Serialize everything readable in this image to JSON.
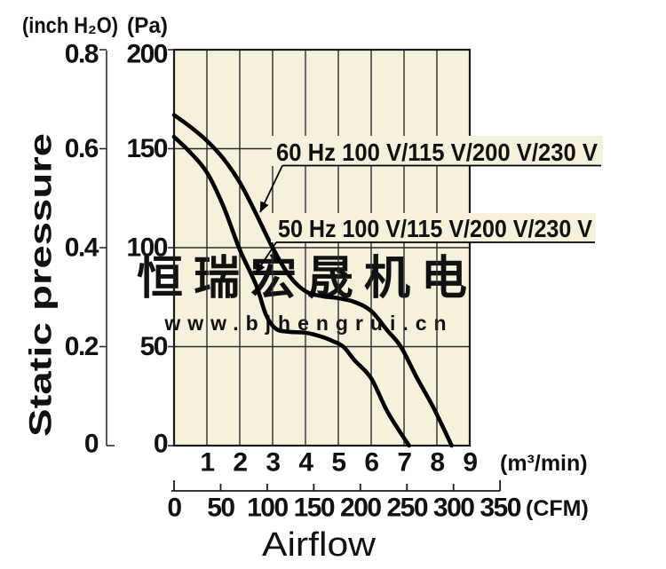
{
  "header": {
    "left_unit": "(inch H₂O)",
    "right_unit": "(Pa)"
  },
  "y_axis": {
    "title": "Static pressure",
    "inch_labels": [
      "0.8",
      "0.6",
      "0.4",
      "0.2",
      "0"
    ],
    "pa_labels": [
      "200",
      "150",
      "100",
      "50",
      "0"
    ]
  },
  "x_axis": {
    "m3min_labels": [
      "1",
      "2",
      "3",
      "4",
      "5",
      "6",
      "7",
      "8",
      "9"
    ],
    "m3min_unit": "(m³/min)",
    "cfm_labels": [
      "0",
      "50",
      "100",
      "150",
      "200",
      "250",
      "300",
      "350"
    ],
    "cfm_unit": "(CFM)",
    "title": "Airflow"
  },
  "curve_labels": {
    "hz60": "60 Hz 100 V/115 V/200 V/230 V",
    "hz50": "50 Hz 100 V/115 V/200 V/230 V"
  },
  "watermark": {
    "text": "恒瑞宏晟机电",
    "url": "www.bjhengrui.cn"
  },
  "colors": {
    "plot_bg": "#f6f1dc",
    "grid": "#2b2b2b",
    "frame": "#1a1a1a",
    "curve": "#000000",
    "text": "#111111",
    "watermark": "#dcd9ca",
    "watermark_url": "#c9c6b8"
  },
  "chart_data": {
    "type": "line",
    "title": "Fan performance: static pressure vs airflow",
    "xlabel": "Airflow",
    "ylabel": "Static pressure",
    "x_unit_primary": "m³/min",
    "x_unit_secondary": "CFM",
    "y_unit_primary": "Pa",
    "y_unit_secondary": "inch H₂O",
    "xlim_m3min": [
      0,
      9
    ],
    "ylim_pa": [
      0,
      200
    ],
    "x_ticks_m3min": [
      1,
      2,
      3,
      4,
      5,
      6,
      7,
      8,
      9
    ],
    "x_ticks_cfm": [
      0,
      50,
      100,
      150,
      200,
      250,
      300,
      350
    ],
    "y_ticks_pa": [
      0,
      50,
      100,
      150,
      200
    ],
    "y_ticks_inch": [
      0,
      0.2,
      0.4,
      0.6,
      0.8
    ],
    "grid": true,
    "legend_position": "inline-annotations",
    "series": [
      {
        "name": "60 Hz 100 V/115 V/200 V/230 V",
        "x_unit": "m³/min",
        "y_unit": "Pa",
        "points": [
          [
            0,
            167
          ],
          [
            0.5,
            161
          ],
          [
            1,
            154
          ],
          [
            1.5,
            145
          ],
          [
            2,
            133
          ],
          [
            2.5,
            117
          ],
          [
            3,
            100
          ],
          [
            3.5,
            86
          ],
          [
            4,
            78
          ],
          [
            4.5,
            75.5
          ],
          [
            5,
            74.5
          ],
          [
            5.5,
            72.5
          ],
          [
            6,
            68
          ],
          [
            6.5,
            58
          ],
          [
            6.9,
            50
          ],
          [
            7.4,
            34
          ],
          [
            7.9,
            19
          ],
          [
            8.45,
            0
          ]
        ]
      },
      {
        "name": "50 Hz 100 V/115 V/200 V/230 V",
        "x_unit": "m³/min",
        "y_unit": "Pa",
        "points": [
          [
            0,
            156
          ],
          [
            0.5,
            148
          ],
          [
            1,
            138
          ],
          [
            1.5,
            121
          ],
          [
            2,
            99
          ],
          [
            2.5,
            81
          ],
          [
            2.8,
            66
          ],
          [
            3.1,
            59
          ],
          [
            3.5,
            57.5
          ],
          [
            4,
            57
          ],
          [
            4.5,
            55
          ],
          [
            4.8,
            53
          ],
          [
            5.15,
            50
          ],
          [
            5.5,
            43
          ],
          [
            6,
            34
          ],
          [
            6.5,
            17
          ],
          [
            7.15,
            0
          ]
        ]
      }
    ]
  }
}
